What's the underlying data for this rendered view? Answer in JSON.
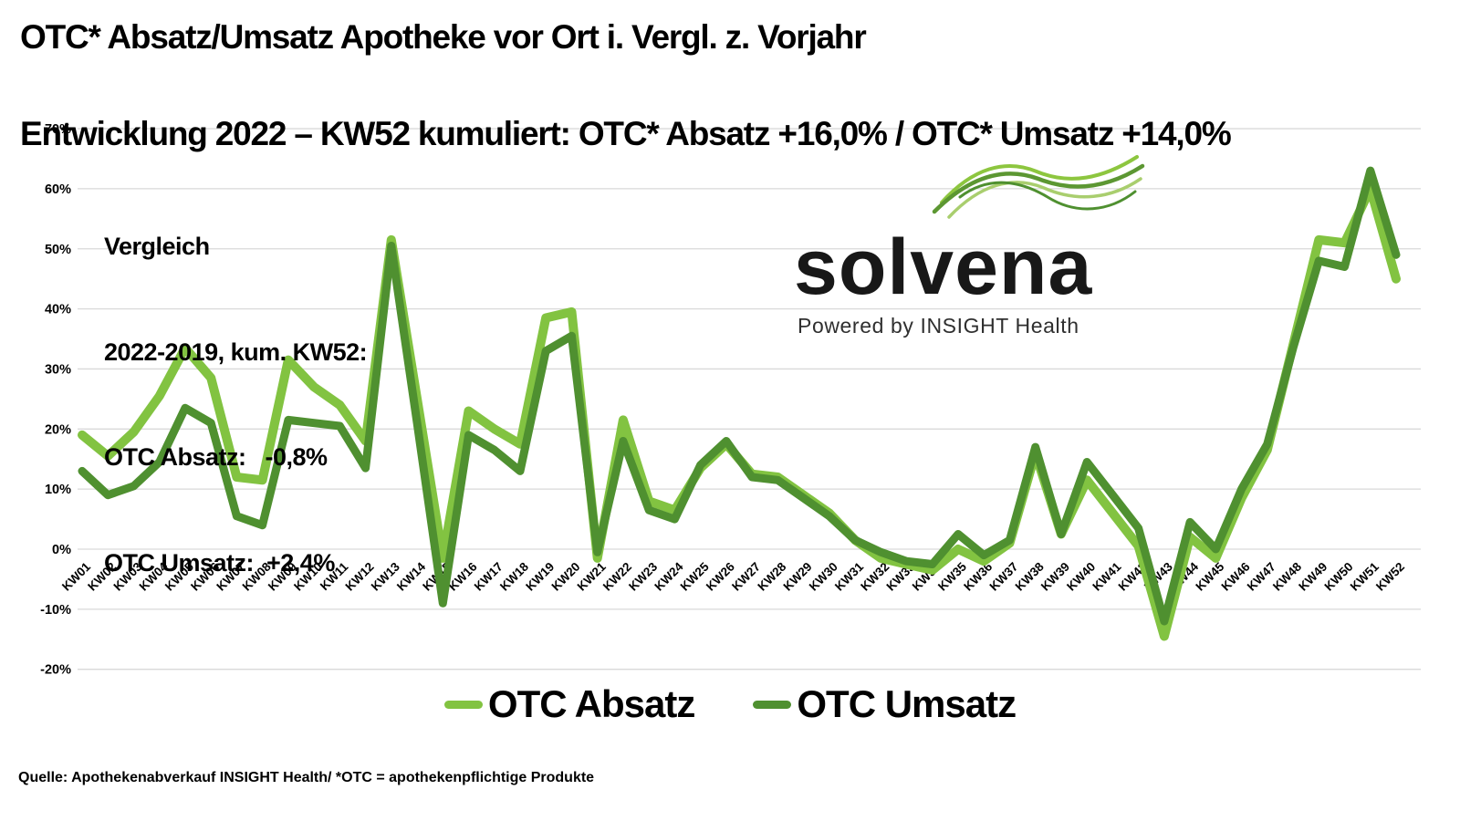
{
  "title": {
    "line1": "OTC* Absatz/Umsatz Apotheke vor Ort i. Vergl. z. Vorjahr",
    "line2": "Entwicklung 2022 – KW52 kumuliert: OTC* Absatz +16,0% / OTC* Umsatz +14,0%"
  },
  "annotation": {
    "line1": "Vergleich",
    "line2": "2022-2019, kum. KW52:",
    "line3": "OTC Absatz:   -0,8%",
    "line4": "OTC Umsatz:  +2,4%"
  },
  "logo": {
    "wordmark": "solvena",
    "tagline": "Powered by INSIGHT Health"
  },
  "source": "Quelle: Apothekenabverkauf INSIGHT Health/ *OTC = apothekenpflichtige Produkte",
  "colors": {
    "absatz_green": "#82C341",
    "umsatz_green": "#4F9030",
    "gridline_gray": "#D9D9D9",
    "text_black": "#000000"
  },
  "chart_data": {
    "type": "line",
    "title": "",
    "xlabel": "",
    "ylabel": "",
    "grid": true,
    "legend_position": "bottom",
    "ylim": [
      -20,
      70
    ],
    "y_ticks": [
      "70%",
      "60%",
      "50%",
      "40%",
      "30%",
      "20%",
      "10%",
      "0%",
      "-10%",
      "-20%"
    ],
    "categories": [
      "KW01",
      "KW02",
      "KW03",
      "KW04",
      "KW05",
      "KW06",
      "KW07",
      "KW08",
      "KW09",
      "KW10",
      "KW11",
      "KW12",
      "KW13",
      "KW14",
      "KW15",
      "KW16",
      "KW17",
      "KW18",
      "KW19",
      "KW20",
      "KW21",
      "KW22",
      "KW23",
      "KW24",
      "KW25",
      "KW26",
      "KW27",
      "KW28",
      "KW29",
      "KW30",
      "KW31",
      "KW32",
      "KW33",
      "KW34",
      "KW35",
      "KW36",
      "KW37",
      "KW38",
      "KW39",
      "KW40",
      "KW41",
      "KW42",
      "KW43",
      "KW44",
      "KW45",
      "KW46",
      "KW47",
      "KW48",
      "KW49",
      "KW50",
      "KW51",
      "KW52"
    ],
    "series": [
      {
        "name": "OTC Absatz",
        "color": "#82C341",
        "values": [
          19,
          15.5,
          19.5,
          25.5,
          33.5,
          28.5,
          12,
          11.5,
          31.5,
          27,
          24,
          18,
          51.5,
          25,
          -1.5,
          23,
          20,
          17.5,
          38.5,
          39.5,
          -1.5,
          21.5,
          8,
          6.5,
          13.5,
          17.5,
          12.5,
          12,
          9,
          6,
          1.5,
          -1.5,
          -2.5,
          -3.5,
          0,
          -2,
          1,
          16,
          2.5,
          11.5,
          6,
          0.5,
          -14.5,
          2,
          -1.5,
          8.5,
          16.5,
          34,
          51.5,
          51,
          60,
          45
        ]
      },
      {
        "name": "OTC Umsatz",
        "color": "#4F9030",
        "values": [
          13,
          9,
          10.5,
          14.5,
          23.5,
          21,
          5.5,
          4,
          21.5,
          21,
          20.5,
          13.5,
          50.5,
          21,
          -9,
          19,
          16.5,
          13,
          33,
          35.5,
          -0.5,
          18,
          6.5,
          5,
          14,
          18,
          12,
          11.5,
          8.5,
          5.5,
          1.5,
          -0.5,
          -2,
          -2.5,
          2.5,
          -1,
          1.5,
          17,
          2.5,
          14.5,
          9,
          3.5,
          -12,
          4.5,
          0,
          10,
          17.5,
          33.5,
          48,
          47,
          63,
          49
        ]
      }
    ]
  }
}
